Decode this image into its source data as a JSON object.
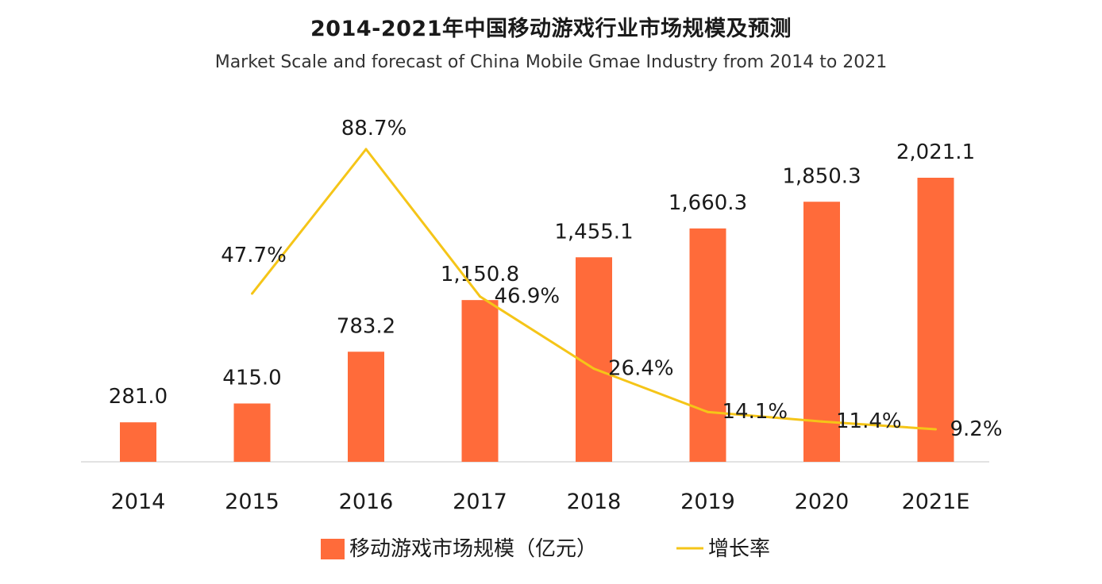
{
  "chart_data": {
    "type": "bar",
    "title": "2014-2021年中国移动游戏行业市场规模及预测",
    "subtitle": "Market Scale and forecast of China Mobile Gmae Industry from 2014 to 2021",
    "categories": [
      "2014",
      "2015",
      "2016",
      "2017",
      "2018",
      "2019",
      "2020",
      "2021E"
    ],
    "series": [
      {
        "name": "移动游戏市场规模（亿元）",
        "type": "bar",
        "values": [
          281.0,
          415.0,
          783.2,
          1150.8,
          1455.1,
          1660.3,
          1850.3,
          2021.1
        ],
        "labels": [
          "281.0",
          "415.0",
          "783.2",
          "1,150.8",
          "1,455.1",
          "1,660.3",
          "1,850.3",
          "2,021.1"
        ],
        "color": "#ff6b3a"
      },
      {
        "name": "增长率",
        "type": "line",
        "values": [
          null,
          47.7,
          88.7,
          46.9,
          26.4,
          14.1,
          11.4,
          9.2
        ],
        "labels": [
          null,
          "47.7%",
          "88.7%",
          "46.9%",
          "26.4%",
          "14.1%",
          "11.4%",
          "9.2%"
        ],
        "color": "#f5c518"
      }
    ],
    "bar_ylim": [
      0,
      2021.1
    ],
    "line_ylim": [
      0,
      88.7
    ],
    "grid": false,
    "legend_position": "bottom"
  }
}
